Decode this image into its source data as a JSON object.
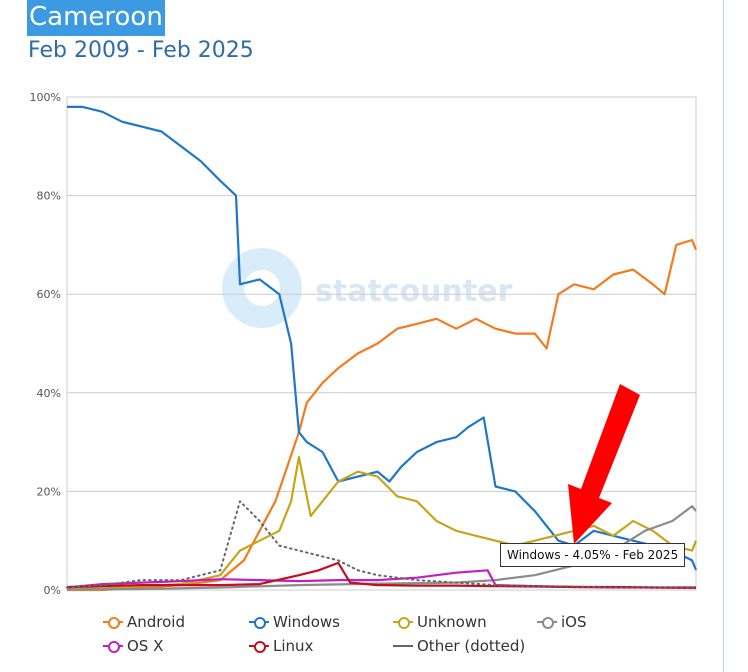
{
  "title": "Cameroon",
  "subtitle": "Feb 2009 - Feb 2025",
  "watermark": "statcounter",
  "tooltip": "Windows - 4.05% - Feb 2025",
  "legend": [
    {
      "name": "Android",
      "color": "#f47a1f"
    },
    {
      "name": "Windows",
      "color": "#1f77c9"
    },
    {
      "name": "Unknown",
      "color": "#c7a51b"
    },
    {
      "name": "iOS",
      "color": "#8c8c8c"
    },
    {
      "name": "OS X",
      "color": "#c21fc2"
    },
    {
      "name": "Linux",
      "color": "#c01020"
    },
    {
      "name": "Other (dotted)",
      "color": "#666666"
    }
  ],
  "chart_data": {
    "type": "line",
    "title": "Cameroon",
    "subtitle": "Feb 2009 - Feb 2025",
    "xlabel": "",
    "ylabel": "",
    "x_range": [
      "2009-02",
      "2025-02"
    ],
    "ylim": [
      0,
      100
    ],
    "yticks": [
      "0%",
      "20%",
      "40%",
      "60%",
      "80%",
      "100%"
    ],
    "grid": true,
    "legend_position": "bottom",
    "series": [
      {
        "name": "Android",
        "color": "#f47a1f",
        "points": [
          [
            2009.1,
            0
          ],
          [
            2010,
            0
          ],
          [
            2011,
            0.5
          ],
          [
            2012,
            1
          ],
          [
            2013,
            2
          ],
          [
            2013.6,
            6
          ],
          [
            2014,
            12
          ],
          [
            2014.4,
            18
          ],
          [
            2014.7,
            25
          ],
          [
            2015,
            32
          ],
          [
            2015.2,
            38
          ],
          [
            2015.6,
            42
          ],
          [
            2016,
            45
          ],
          [
            2016.5,
            48
          ],
          [
            2017,
            50
          ],
          [
            2017.5,
            53
          ],
          [
            2018,
            54
          ],
          [
            2018.5,
            55
          ],
          [
            2019,
            53
          ],
          [
            2019.5,
            55
          ],
          [
            2020,
            53
          ],
          [
            2020.5,
            52
          ],
          [
            2021,
            52
          ],
          [
            2021.3,
            49
          ],
          [
            2021.6,
            60
          ],
          [
            2022,
            62
          ],
          [
            2022.5,
            61
          ],
          [
            2023,
            64
          ],
          [
            2023.5,
            65
          ],
          [
            2024,
            62
          ],
          [
            2024.3,
            60
          ],
          [
            2024.6,
            70
          ],
          [
            2025,
            71
          ],
          [
            2025.1,
            69
          ]
        ]
      },
      {
        "name": "Windows",
        "color": "#1f77c9",
        "points": [
          [
            2009.1,
            98
          ],
          [
            2009.5,
            98
          ],
          [
            2010,
            97
          ],
          [
            2010.5,
            95
          ],
          [
            2011,
            94
          ],
          [
            2011.5,
            93
          ],
          [
            2012,
            90
          ],
          [
            2012.5,
            87
          ],
          [
            2013,
            83
          ],
          [
            2013.4,
            80
          ],
          [
            2013.5,
            62
          ],
          [
            2014,
            63
          ],
          [
            2014.5,
            60
          ],
          [
            2014.8,
            50
          ],
          [
            2015,
            32
          ],
          [
            2015.2,
            30
          ],
          [
            2015.6,
            28
          ],
          [
            2016,
            22
          ],
          [
            2016.5,
            23
          ],
          [
            2017,
            24
          ],
          [
            2017.3,
            22
          ],
          [
            2017.6,
            25
          ],
          [
            2018,
            28
          ],
          [
            2018.5,
            30
          ],
          [
            2019,
            31
          ],
          [
            2019.3,
            33
          ],
          [
            2019.7,
            35
          ],
          [
            2020,
            21
          ],
          [
            2020.5,
            20
          ],
          [
            2021,
            16
          ],
          [
            2021.3,
            13
          ],
          [
            2021.6,
            10
          ],
          [
            2022,
            9
          ],
          [
            2022.5,
            12
          ],
          [
            2023,
            11
          ],
          [
            2023.5,
            10
          ],
          [
            2024,
            9
          ],
          [
            2024.5,
            8
          ],
          [
            2025,
            6
          ],
          [
            2025.1,
            4.05
          ]
        ]
      },
      {
        "name": "Unknown",
        "color": "#c7a51b",
        "points": [
          [
            2009.1,
            0.5
          ],
          [
            2010,
            0.3
          ],
          [
            2011,
            0.8
          ],
          [
            2012,
            1.2
          ],
          [
            2013,
            3
          ],
          [
            2013.5,
            8
          ],
          [
            2014,
            10
          ],
          [
            2014.5,
            12
          ],
          [
            2014.8,
            18
          ],
          [
            2015,
            27
          ],
          [
            2015.3,
            15
          ],
          [
            2015.6,
            18
          ],
          [
            2016,
            22
          ],
          [
            2016.5,
            24
          ],
          [
            2017,
            23
          ],
          [
            2017.5,
            19
          ],
          [
            2018,
            18
          ],
          [
            2018.5,
            14
          ],
          [
            2019,
            12
          ],
          [
            2019.5,
            11
          ],
          [
            2020,
            10
          ],
          [
            2020.5,
            9
          ],
          [
            2021,
            10
          ],
          [
            2021.5,
            11
          ],
          [
            2022,
            12
          ],
          [
            2022.5,
            13
          ],
          [
            2023,
            11
          ],
          [
            2023.5,
            14
          ],
          [
            2024,
            12
          ],
          [
            2024.5,
            9
          ],
          [
            2025,
            8
          ],
          [
            2025.1,
            10
          ]
        ]
      },
      {
        "name": "iOS",
        "color": "#8c8c8c",
        "points": [
          [
            2009.1,
            0.1
          ],
          [
            2011,
            0.2
          ],
          [
            2013,
            0.5
          ],
          [
            2015,
            1
          ],
          [
            2017,
            1.3
          ],
          [
            2019,
            1.5
          ],
          [
            2020,
            2
          ],
          [
            2021,
            3
          ],
          [
            2022,
            5
          ],
          [
            2023,
            8
          ],
          [
            2023.8,
            12
          ],
          [
            2024.5,
            14
          ],
          [
            2025,
            17
          ],
          [
            2025.1,
            16
          ]
        ]
      },
      {
        "name": "OS X",
        "color": "#c21fc2",
        "points": [
          [
            2009.1,
            0.5
          ],
          [
            2010,
            1.2
          ],
          [
            2011,
            1.5
          ],
          [
            2012,
            1.8
          ],
          [
            2013,
            2.2
          ],
          [
            2014,
            2
          ],
          [
            2015,
            1.8
          ],
          [
            2016,
            2
          ],
          [
            2017,
            2
          ],
          [
            2018,
            2.5
          ],
          [
            2019,
            3.5
          ],
          [
            2019.8,
            4
          ],
          [
            2020,
            1
          ],
          [
            2021,
            0.8
          ],
          [
            2022,
            0.6
          ],
          [
            2023,
            0.5
          ],
          [
            2024,
            0.5
          ],
          [
            2025.1,
            0.4
          ]
        ]
      },
      {
        "name": "Linux",
        "color": "#c01020",
        "points": [
          [
            2009.1,
            0.6
          ],
          [
            2010,
            0.8
          ],
          [
            2011,
            1
          ],
          [
            2012,
            1
          ],
          [
            2013,
            1
          ],
          [
            2014,
            1.2
          ],
          [
            2015,
            3
          ],
          [
            2015.5,
            4
          ],
          [
            2016,
            5.5
          ],
          [
            2016.3,
            1.5
          ],
          [
            2017,
            1
          ],
          [
            2018,
            0.9
          ],
          [
            2019,
            0.9
          ],
          [
            2020,
            0.8
          ],
          [
            2021,
            0.7
          ],
          [
            2022,
            0.6
          ],
          [
            2023,
            0.6
          ],
          [
            2024,
            0.5
          ],
          [
            2025.1,
            0.5
          ]
        ]
      },
      {
        "name": "Other (dotted)",
        "color": "#666666",
        "dotted": true,
        "points": [
          [
            2009.1,
            0.5
          ],
          [
            2010,
            1
          ],
          [
            2011,
            2
          ],
          [
            2012,
            2
          ],
          [
            2013,
            4
          ],
          [
            2013.5,
            18
          ],
          [
            2014,
            14
          ],
          [
            2014.5,
            9
          ],
          [
            2015,
            8
          ],
          [
            2015.5,
            7
          ],
          [
            2016,
            6
          ],
          [
            2016.5,
            4
          ],
          [
            2017,
            3
          ],
          [
            2018,
            2
          ],
          [
            2019,
            1.5
          ],
          [
            2020,
            1
          ],
          [
            2021,
            0.8
          ],
          [
            2022,
            0.7
          ],
          [
            2023,
            0.5
          ],
          [
            2024,
            0.5
          ],
          [
            2025.1,
            0.4
          ]
        ]
      }
    ]
  }
}
